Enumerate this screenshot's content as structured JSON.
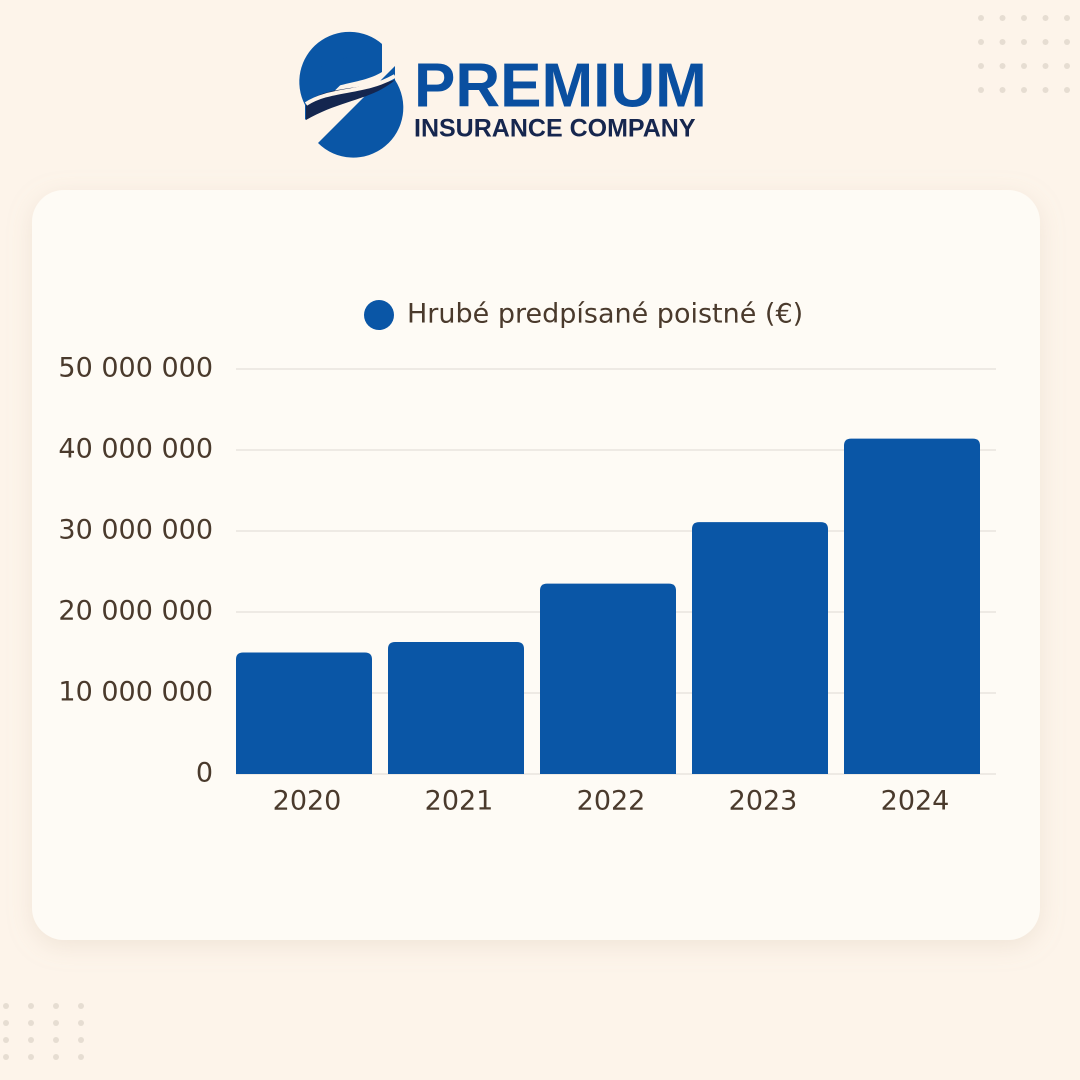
{
  "brand": {
    "name": "PREMIUM",
    "tagline": "INSURANCE COMPANY"
  },
  "chart_data": {
    "type": "bar",
    "categories": [
      "2020",
      "2021",
      "2022",
      "2023",
      "2024"
    ],
    "series": [
      {
        "name": "Hrubé predpísané poistné (€)",
        "color": "#0a56a6",
        "values": [
          15000000,
          16300000,
          23500000,
          31100000,
          41400000
        ]
      }
    ],
    "ylim": [
      0,
      50000000
    ],
    "yticks": [
      0,
      {
        "value": 10000000,
        "label": "10 000 000"
      },
      {
        "value": 20000000,
        "label": "20 000 000"
      },
      {
        "value": 30000000,
        "label": "30 000 000"
      },
      {
        "value": 40000000,
        "label": "40 000 000"
      },
      {
        "value": 50000000,
        "label": "50 000 000"
      }
    ],
    "grid": true,
    "legend": "top"
  }
}
